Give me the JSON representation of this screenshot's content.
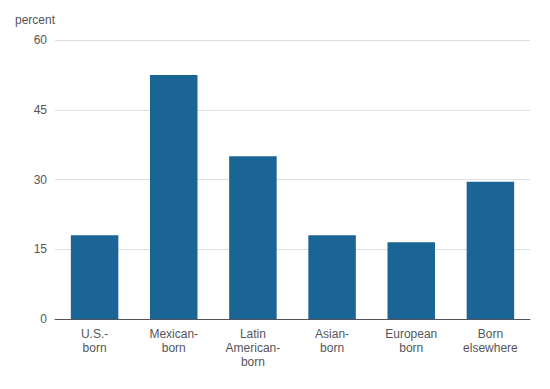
{
  "chart_data": {
    "type": "bar",
    "ylabel": "percent",
    "categories": [
      "U.S.-\nborn",
      "Mexican-\nborn",
      "Latin\nAmerican-\nborn",
      "Asian-\nborn",
      "European\nborn",
      "Born\nelsewhere"
    ],
    "values": [
      18.0,
      52.5,
      35.0,
      18.0,
      16.5,
      29.5
    ],
    "color": "#1a6496",
    "ylim": [
      0,
      60
    ],
    "yticks": [
      0,
      15,
      30,
      45,
      60
    ],
    "grid": true
  }
}
